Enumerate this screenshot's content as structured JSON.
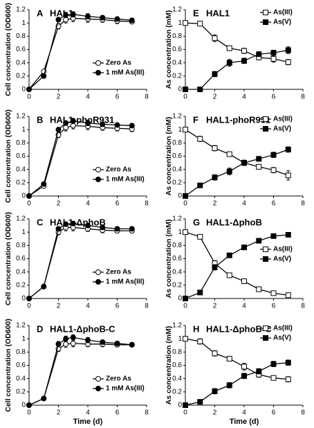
{
  "chart_data": [
    {
      "type": "line",
      "label": "A",
      "title": "HAL1",
      "ylabel": "Cell concentration (OD600)",
      "xlim": [
        0,
        8
      ],
      "xticks": [
        0,
        2,
        4,
        6,
        8
      ],
      "ylim": [
        0,
        1.2
      ],
      "yticks": [
        0,
        0.2,
        0.4,
        0.6,
        0.8,
        1,
        1.2
      ],
      "legend": "lower right",
      "x": [
        0,
        1,
        2,
        2.5,
        3,
        4,
        5,
        6,
        7
      ],
      "series": [
        {
          "name": "Zero As",
          "color": "#000000",
          "marker": "circle",
          "filled": false,
          "values": [
            0,
            0.27,
            0.95,
            1.05,
            1.07,
            1.06,
            1.05,
            1.03,
            1.02
          ],
          "errors": [
            0,
            0.02,
            0.04,
            0.05,
            0.05,
            0.05,
            0.04,
            0.04,
            0.03
          ]
        },
        {
          "name": "1 mM As(III)",
          "color": "#000000",
          "marker": "circle",
          "filled": true,
          "values": [
            0,
            0.2,
            1.05,
            1.12,
            1.13,
            1.1,
            1.08,
            1.06,
            1.04
          ],
          "errors": [
            0,
            0.02,
            0.03,
            0.04,
            0.04,
            0.04,
            0.03,
            0.03,
            0.03
          ]
        }
      ]
    },
    {
      "type": "line",
      "label": "B",
      "title": "HAL1-phoR931",
      "ylabel": "Cell concentration (OD600)",
      "xlim": [
        0,
        8
      ],
      "xticks": [
        0,
        2,
        4,
        6,
        8
      ],
      "ylim": [
        0,
        1.2
      ],
      "yticks": [
        0,
        0.2,
        0.4,
        0.6,
        0.8,
        1,
        1.2
      ],
      "legend": "lower right",
      "x": [
        0,
        1,
        2,
        2.5,
        3,
        4,
        5,
        6,
        7
      ],
      "series": [
        {
          "name": "Zero As",
          "color": "#000000",
          "marker": "circle",
          "filled": false,
          "values": [
            0,
            0.15,
            0.92,
            1.03,
            1.06,
            1.05,
            1.03,
            1.02,
            1.01
          ],
          "errors": [
            0,
            0.02,
            0.04,
            0.05,
            0.05,
            0.05,
            0.04,
            0.04,
            0.04
          ]
        },
        {
          "name": "1 mM As(III)",
          "color": "#000000",
          "marker": "circle",
          "filled": true,
          "values": [
            0,
            0.18,
            1.0,
            1.1,
            1.13,
            1.1,
            1.08,
            1.07,
            1.06
          ],
          "errors": [
            0,
            0.02,
            0.03,
            0.03,
            0.04,
            0.04,
            0.03,
            0.03,
            0.03
          ]
        }
      ]
    },
    {
      "type": "line",
      "label": "C",
      "title": "HAL1-ΔphoB",
      "ylabel": "Cell concentration (OD600)",
      "xlim": [
        0,
        8
      ],
      "xticks": [
        0,
        2,
        4,
        6,
        8
      ],
      "ylim": [
        0,
        1.2
      ],
      "yticks": [
        0,
        0.2,
        0.4,
        0.6,
        0.8,
        1,
        1.2
      ],
      "legend": "lower right",
      "x": [
        0,
        1,
        2,
        2.5,
        3,
        4,
        5,
        6,
        7
      ],
      "series": [
        {
          "name": "Zero As",
          "color": "#000000",
          "marker": "circle",
          "filled": false,
          "values": [
            0,
            0.18,
            1.0,
            1.07,
            1.07,
            1.05,
            1.03,
            1.02,
            1.02
          ],
          "errors": [
            0,
            0.02,
            0.04,
            0.05,
            0.05,
            0.04,
            0.04,
            0.03,
            0.03
          ]
        },
        {
          "name": "1 mM As(III)",
          "color": "#000000",
          "marker": "circle",
          "filled": true,
          "values": [
            0,
            0.18,
            1.05,
            1.12,
            1.13,
            1.1,
            1.07,
            1.05,
            1.05
          ],
          "errors": [
            0,
            0.02,
            0.03,
            0.03,
            0.03,
            0.03,
            0.03,
            0.03,
            0.03
          ]
        }
      ]
    },
    {
      "type": "line",
      "label": "D",
      "title": "HAL1-ΔphoB-C",
      "ylabel": "Cell concentration (OD600)",
      "xlabel": "Time (d)",
      "xlim": [
        0,
        8
      ],
      "xticks": [
        0,
        2,
        4,
        6,
        8
      ],
      "ylim": [
        0,
        1.2
      ],
      "yticks": [
        0,
        0.2,
        0.4,
        0.6,
        0.8,
        1,
        1.2
      ],
      "legend": "lower right",
      "x": [
        0,
        1,
        2,
        2.5,
        3,
        4,
        5,
        6,
        7
      ],
      "series": [
        {
          "name": "Zero As",
          "color": "#000000",
          "marker": "circle",
          "filled": false,
          "values": [
            0,
            0.1,
            0.85,
            0.92,
            0.93,
            0.92,
            0.92,
            0.91,
            0.91
          ],
          "errors": [
            0,
            0.02,
            0.04,
            0.05,
            0.05,
            0.04,
            0.04,
            0.03,
            0.03
          ]
        },
        {
          "name": "1 mM As(III)",
          "color": "#000000",
          "marker": "circle",
          "filled": true,
          "values": [
            0,
            0.1,
            0.92,
            1.0,
            1.02,
            0.98,
            0.95,
            0.93,
            0.91
          ],
          "errors": [
            0,
            0.02,
            0.04,
            0.04,
            0.04,
            0.04,
            0.03,
            0.03,
            0.03
          ]
        }
      ]
    },
    {
      "type": "line",
      "label": "E",
      "title": "HAL1",
      "ylabel": "As concentration (mM)",
      "xlim": [
        0,
        8
      ],
      "xticks": [
        0,
        2,
        4,
        6,
        8
      ],
      "ylim": [
        0,
        1.2
      ],
      "yticks": [
        0,
        0.2,
        0.4,
        0.6,
        0.8,
        1,
        1.2
      ],
      "legend": "upper right",
      "x": [
        0,
        1,
        2,
        3,
        4,
        5,
        6,
        7
      ],
      "series": [
        {
          "name": "As(III)",
          "color": "#000000",
          "marker": "square",
          "filled": false,
          "values": [
            1.0,
            0.99,
            0.77,
            0.62,
            0.58,
            0.48,
            0.46,
            0.41
          ],
          "errors": [
            0,
            0.02,
            0.05,
            0.03,
            0.04,
            0.03,
            0.05,
            0.04
          ]
        },
        {
          "name": "As(V)",
          "color": "#000000",
          "marker": "square",
          "filled": true,
          "values": [
            0,
            0,
            0.23,
            0.4,
            0.43,
            0.53,
            0.55,
            0.59
          ],
          "errors": [
            0,
            0,
            0.04,
            0.05,
            0.04,
            0.03,
            0.04,
            0.05
          ]
        }
      ]
    },
    {
      "type": "line",
      "label": "F",
      "title": "HAL1-phoR931",
      "ylabel": "As concentration (mM)",
      "xlim": [
        0,
        8
      ],
      "xticks": [
        0,
        2,
        4,
        6,
        8
      ],
      "ylim": [
        0,
        1.2
      ],
      "yticks": [
        0,
        0.2,
        0.4,
        0.6,
        0.8,
        1,
        1.2
      ],
      "legend": "upper right",
      "x": [
        0,
        1,
        2,
        3,
        4,
        5,
        6,
        7
      ],
      "series": [
        {
          "name": "As(III)",
          "color": "#000000",
          "marker": "square",
          "filled": false,
          "values": [
            1.0,
            0.86,
            0.72,
            0.63,
            0.5,
            0.44,
            0.39,
            0.31
          ],
          "errors": [
            0,
            0.04,
            0.04,
            0.03,
            0.04,
            0.03,
            0.04,
            0.07
          ]
        },
        {
          "name": "As(V)",
          "color": "#000000",
          "marker": "square",
          "filled": true,
          "values": [
            0,
            0.16,
            0.28,
            0.37,
            0.5,
            0.56,
            0.62,
            0.7
          ],
          "errors": [
            0,
            0.03,
            0.04,
            0.05,
            0.04,
            0.02,
            0.04,
            0.04
          ]
        }
      ]
    },
    {
      "type": "line",
      "label": "G",
      "title": "HAL1-ΔphoB",
      "ylabel": "As concentration (mM)",
      "xlim": [
        0,
        8
      ],
      "xticks": [
        0,
        2,
        4,
        6,
        8
      ],
      "ylim": [
        0,
        1.2
      ],
      "yticks": [
        0,
        0.2,
        0.4,
        0.6,
        0.8,
        1,
        1.2
      ],
      "legend": "center right",
      "x": [
        0,
        1,
        2,
        3,
        4,
        5,
        6,
        7
      ],
      "series": [
        {
          "name": "As(III)",
          "color": "#000000",
          "marker": "square",
          "filled": false,
          "values": [
            1.0,
            0.93,
            0.53,
            0.35,
            0.26,
            0.14,
            0.08,
            0.05
          ],
          "errors": [
            0,
            0.02,
            0.04,
            0.02,
            0.02,
            0.02,
            0.02,
            0.01
          ]
        },
        {
          "name": "As(V)",
          "color": "#000000",
          "marker": "square",
          "filled": true,
          "values": [
            0,
            0.09,
            0.47,
            0.65,
            0.77,
            0.87,
            0.94,
            0.96
          ],
          "errors": [
            0,
            0.02,
            0.04,
            0.03,
            0.03,
            0.02,
            0.02,
            0.02
          ]
        }
      ]
    },
    {
      "type": "line",
      "label": "H",
      "title": "HAL1-ΔphoB-C",
      "ylabel": "As concentration (mM)",
      "xlabel": "Time (d)",
      "xlim": [
        0,
        8
      ],
      "xticks": [
        0,
        2,
        4,
        6,
        8
      ],
      "ylim": [
        0,
        1.2
      ],
      "yticks": [
        0,
        0.2,
        0.4,
        0.6,
        0.8,
        1,
        1.2
      ],
      "legend": "upper right",
      "x": [
        0,
        1,
        2,
        3,
        4,
        5,
        6,
        7
      ],
      "series": [
        {
          "name": "As(III)",
          "color": "#000000",
          "marker": "square",
          "filled": false,
          "values": [
            1.0,
            0.96,
            0.78,
            0.7,
            0.58,
            0.46,
            0.41,
            0.39
          ],
          "errors": [
            0,
            0.04,
            0.04,
            0.03,
            0.05,
            0.04,
            0.03,
            0.04
          ]
        },
        {
          "name": "As(V)",
          "color": "#000000",
          "marker": "square",
          "filled": true,
          "values": [
            0,
            0.05,
            0.21,
            0.3,
            0.44,
            0.51,
            0.62,
            0.64
          ],
          "errors": [
            0,
            0.01,
            0.04,
            0.04,
            0.04,
            0.04,
            0.04,
            0.04
          ]
        }
      ]
    }
  ]
}
